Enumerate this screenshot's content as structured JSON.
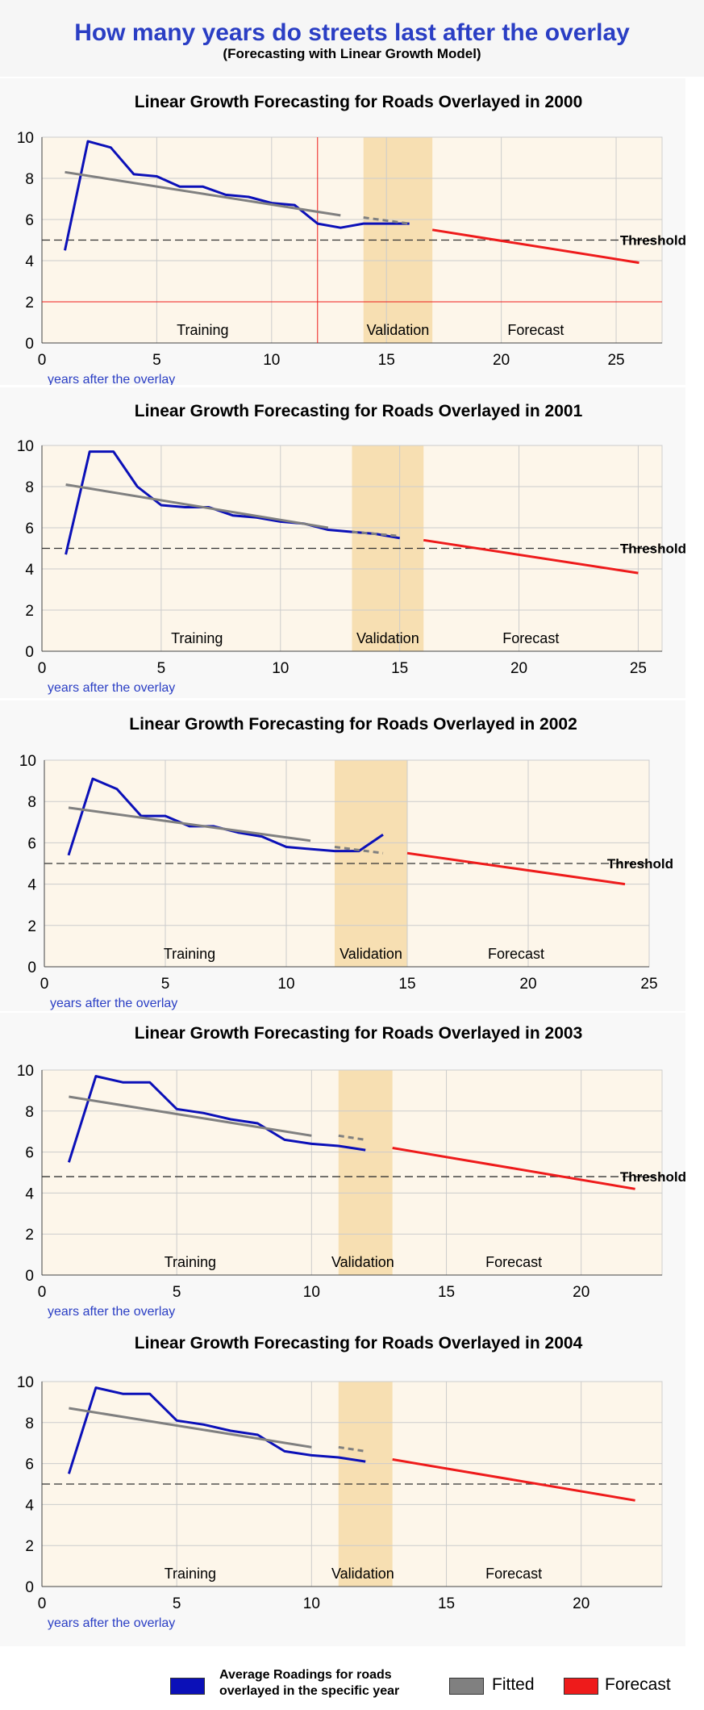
{
  "page": {
    "title": "How many years do streets last after the overlay",
    "subtitle": "(Forecasting with Linear Growth Model)"
  },
  "colors": {
    "average": "#0b10b8",
    "fitted": "#808080",
    "forecast": "#ee1b1b",
    "plot_bg": "#fdf6ea",
    "validation_band": "#f7dfb2",
    "grid": "#cccccc",
    "axis_label": "#2a3ec4"
  },
  "legend": {
    "average_label_line1": "Average Roadings for roads",
    "average_label_line2": "overlayed in the specific year",
    "fitted_label": "Fitted",
    "forecast_label": "Forecast"
  },
  "chart_data": [
    {
      "type": "line",
      "title": "Linear Growth Forecasting for Roads Overlayed in 2000",
      "xlabel": "years after the overlay",
      "ylabel": "",
      "xlim": [
        0,
        27
      ],
      "ylim": [
        0,
        10
      ],
      "xticks": [
        0,
        5,
        10,
        15,
        20,
        25
      ],
      "yticks": [
        0,
        2,
        4,
        6,
        8,
        10
      ],
      "grid": true,
      "threshold": 5,
      "threshold_label": "Threshold",
      "validation_range": [
        14,
        17
      ],
      "red_vline": 12,
      "red_hline": 2,
      "region_labels": [
        {
          "text": "Training",
          "x": 7
        },
        {
          "text": "Validation",
          "x": 15.5
        },
        {
          "text": "Forecast",
          "x": 21.5
        }
      ],
      "series": [
        {
          "name": "Average Roadings for roads overlayed in the specific year",
          "role": "average",
          "x": [
            1,
            2,
            3,
            4,
            5,
            6,
            7,
            8,
            9,
            10,
            11,
            12,
            13,
            14,
            15,
            16
          ],
          "y": [
            4.5,
            9.8,
            9.5,
            8.2,
            8.1,
            7.6,
            7.6,
            7.2,
            7.1,
            6.8,
            6.7,
            5.8,
            5.6,
            5.8,
            5.8,
            5.8
          ]
        },
        {
          "name": "Fitted",
          "role": "fitted",
          "x": [
            1,
            13
          ],
          "y": [
            8.3,
            6.2
          ]
        },
        {
          "name": "Fitted",
          "role": "fitted_dashed",
          "x": [
            14,
            16
          ],
          "y": [
            6.1,
            5.8
          ]
        },
        {
          "name": "Forecast",
          "role": "forecast",
          "x": [
            17,
            26
          ],
          "y": [
            5.5,
            3.9
          ]
        }
      ]
    },
    {
      "type": "line",
      "title": "Linear Growth Forecasting for Roads Overlayed in 2001",
      "xlabel": "years after the overlay",
      "ylabel": "",
      "xlim": [
        0,
        26
      ],
      "ylim": [
        0,
        10
      ],
      "xticks": [
        0,
        5,
        10,
        15,
        20,
        25
      ],
      "yticks": [
        0,
        2,
        4,
        6,
        8,
        10
      ],
      "grid": true,
      "threshold": 5,
      "threshold_label": "Threshold",
      "validation_range": [
        13,
        16
      ],
      "region_labels": [
        {
          "text": "Training",
          "x": 6.5
        },
        {
          "text": "Validation",
          "x": 14.5
        },
        {
          "text": "Forecast",
          "x": 20.5
        }
      ],
      "series": [
        {
          "name": "Average Roadings for roads overlayed in the specific year",
          "role": "average",
          "x": [
            1,
            2,
            3,
            4,
            5,
            6,
            7,
            8,
            9,
            10,
            11,
            12,
            13,
            14,
            15
          ],
          "y": [
            4.7,
            9.7,
            9.7,
            8.0,
            7.1,
            7.0,
            7.0,
            6.6,
            6.5,
            6.3,
            6.2,
            5.9,
            5.8,
            5.7,
            5.5
          ]
        },
        {
          "name": "Fitted",
          "role": "fitted",
          "x": [
            1,
            12
          ],
          "y": [
            8.1,
            6.0
          ]
        },
        {
          "name": "Fitted",
          "role": "fitted_dashed",
          "x": [
            13,
            15
          ],
          "y": [
            5.8,
            5.6
          ]
        },
        {
          "name": "Forecast",
          "role": "forecast",
          "x": [
            16,
            25
          ],
          "y": [
            5.4,
            3.8
          ]
        }
      ]
    },
    {
      "type": "line",
      "title": "Linear Growth Forecasting for Roads Overlayed in 2002",
      "xlabel": "years after the overlay",
      "ylabel": "",
      "xlim": [
        0,
        25
      ],
      "ylim": [
        0,
        10
      ],
      "xticks": [
        0,
        5,
        10,
        15,
        20,
        25
      ],
      "yticks": [
        0,
        2,
        4,
        6,
        8,
        10
      ],
      "grid": true,
      "threshold": 5,
      "threshold_label": "Threshold",
      "validation_range": [
        12,
        15
      ],
      "region_labels": [
        {
          "text": "Training",
          "x": 6
        },
        {
          "text": "Validation",
          "x": 13.5
        },
        {
          "text": "Forecast",
          "x": 19.5
        }
      ],
      "series": [
        {
          "name": "Average Roadings for roads overlayed in the specific year",
          "role": "average",
          "x": [
            1,
            2,
            3,
            4,
            5,
            6,
            7,
            8,
            9,
            10,
            11,
            12,
            13,
            14
          ],
          "y": [
            5.4,
            9.1,
            8.6,
            7.3,
            7.3,
            6.8,
            6.8,
            6.5,
            6.3,
            5.8,
            5.7,
            5.6,
            5.6,
            6.4
          ]
        },
        {
          "name": "Fitted",
          "role": "fitted",
          "x": [
            1,
            11
          ],
          "y": [
            7.7,
            6.1
          ]
        },
        {
          "name": "Fitted",
          "role": "fitted_dashed",
          "x": [
            12,
            14
          ],
          "y": [
            5.8,
            5.5
          ]
        },
        {
          "name": "Forecast",
          "role": "forecast",
          "x": [
            15,
            24
          ],
          "y": [
            5.5,
            4.0
          ]
        }
      ]
    },
    {
      "type": "line",
      "title": "Linear Growth Forecasting for Roads Overlayed in 2003",
      "xlabel": "years after the overlay",
      "ylabel": "",
      "xlim": [
        0,
        23
      ],
      "ylim": [
        0,
        10
      ],
      "xticks": [
        0,
        5,
        10,
        15,
        20
      ],
      "yticks": [
        0,
        2,
        4,
        6,
        8,
        10
      ],
      "grid": true,
      "threshold": 4.8,
      "threshold_label": "Threshold",
      "validation_range": [
        11,
        13
      ],
      "region_labels": [
        {
          "text": "Training",
          "x": 5.5
        },
        {
          "text": "Validation",
          "x": 11.9
        },
        {
          "text": "Forecast",
          "x": 17.5
        }
      ],
      "series": [
        {
          "name": "Average Roadings for roads overlayed in the specific year",
          "role": "average",
          "x": [
            1,
            2,
            3,
            4,
            5,
            6,
            7,
            8,
            9,
            10,
            11,
            12
          ],
          "y": [
            5.5,
            9.7,
            9.4,
            9.4,
            8.1,
            7.9,
            7.6,
            7.4,
            6.6,
            6.4,
            6.3,
            6.1
          ]
        },
        {
          "name": "Fitted",
          "role": "fitted",
          "x": [
            1,
            10
          ],
          "y": [
            8.7,
            6.8
          ]
        },
        {
          "name": "Fitted",
          "role": "fitted_dashed",
          "x": [
            11,
            12
          ],
          "y": [
            6.8,
            6.6
          ]
        },
        {
          "name": "Forecast",
          "role": "forecast",
          "x": [
            13,
            22
          ],
          "y": [
            6.2,
            4.2
          ]
        }
      ]
    },
    {
      "type": "line",
      "title": "Linear Growth Forecasting for Roads Overlayed in 2004",
      "xlabel": "years after the overlay",
      "ylabel": "",
      "xlim": [
        0,
        23
      ],
      "ylim": [
        0,
        10
      ],
      "xticks": [
        0,
        5,
        10,
        15,
        20
      ],
      "yticks": [
        0,
        2,
        4,
        6,
        8,
        10
      ],
      "grid": true,
      "threshold": 5,
      "threshold_label": "",
      "validation_range": [
        11,
        13
      ],
      "region_labels": [
        {
          "text": "Training",
          "x": 5.5
        },
        {
          "text": "Validation",
          "x": 11.9
        },
        {
          "text": "Forecast",
          "x": 17.5
        }
      ],
      "series": [
        {
          "name": "Average Roadings for roads overlayed in the specific year",
          "role": "average",
          "x": [
            1,
            2,
            3,
            4,
            5,
            6,
            7,
            8,
            9,
            10,
            11,
            12
          ],
          "y": [
            5.5,
            9.7,
            9.4,
            9.4,
            8.1,
            7.9,
            7.6,
            7.4,
            6.6,
            6.4,
            6.3,
            6.1
          ]
        },
        {
          "name": "Fitted",
          "role": "fitted",
          "x": [
            1,
            10
          ],
          "y": [
            8.7,
            6.8
          ]
        },
        {
          "name": "Fitted",
          "role": "fitted_dashed",
          "x": [
            11,
            12
          ],
          "y": [
            6.8,
            6.6
          ]
        },
        {
          "name": "Forecast",
          "role": "forecast",
          "x": [
            13,
            22
          ],
          "y": [
            6.2,
            4.2
          ]
        }
      ]
    }
  ]
}
